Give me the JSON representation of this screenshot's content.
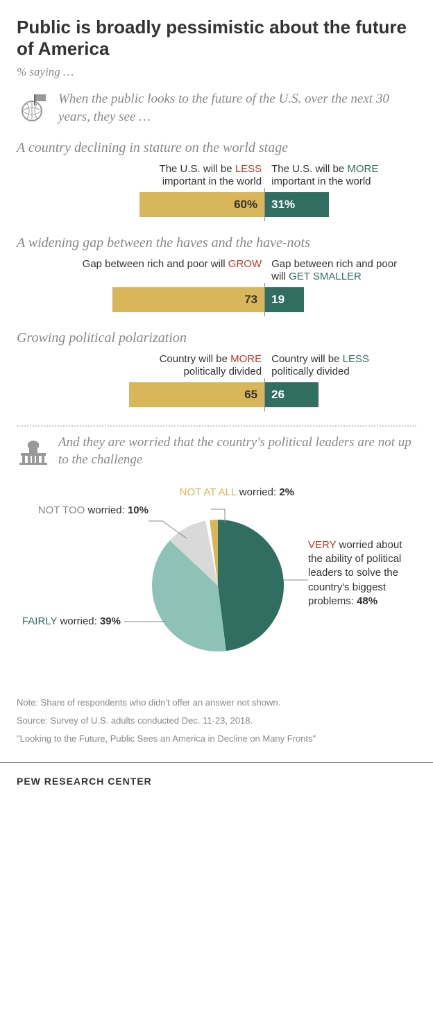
{
  "title": "Public is broadly pessimistic about the future of America",
  "subtitle": "% saying …",
  "colors": {
    "gold": "#d9b65a",
    "teal": "#2f6e61",
    "teal_light": "#8fc2b7",
    "red_kw": "#c0392b",
    "green_kw": "#2f6e61",
    "gray_text": "#888888"
  },
  "section1": {
    "intro": "When the public looks to the future of the U.S. over the next 30 years, they see …",
    "blocks": [
      {
        "title": "A country declining in stature on the world stage",
        "left_label_pre": "The U.S. will be ",
        "left_kw": "LESS",
        "left_label_post": " important in the world",
        "right_label_pre": "The U.S. will be ",
        "right_kw": "MORE",
        "right_label_post": " important in the world",
        "left_val": 60,
        "left_val_txt": "60%",
        "right_val": 31,
        "right_val_txt": "31%",
        "scale": 3.0
      },
      {
        "title": "A widening gap between the haves and the have-nots",
        "left_label_pre": "Gap between rich and poor will ",
        "left_kw": "GROW",
        "left_label_post": "",
        "right_label_pre": "Gap between rich and poor will ",
        "right_kw": "GET SMALLER",
        "right_label_post": "",
        "left_val": 73,
        "left_val_txt": "73",
        "right_val": 19,
        "right_val_txt": "19",
        "scale": 3.0
      },
      {
        "title": "Growing political polarization",
        "left_label_pre": "Country will be ",
        "left_kw": "MORE",
        "left_label_post": " politically divided",
        "right_label_pre": "Country will be ",
        "right_kw": "LESS",
        "right_label_post": " politically divided",
        "left_val": 65,
        "left_val_txt": "65",
        "right_val": 26,
        "right_val_txt": "26",
        "scale": 3.0
      }
    ]
  },
  "section2": {
    "intro": "And they are worried that the country's political leaders are not up to the challenge",
    "pie": {
      "slices": [
        {
          "label_kw": "VERY",
          "label_rest": " worried about the ability of political leaders to solve the country's biggest problems: ",
          "val": 48,
          "val_txt": "48%",
          "color": "#2f6e61"
        },
        {
          "label_kw": "FAIRLY",
          "label_rest": " worried: ",
          "val": 39,
          "val_txt": "39%",
          "color": "#8fc2b7"
        },
        {
          "label_kw": "NOT TOO",
          "label_rest": " worried: ",
          "val": 10,
          "val_txt": "10%",
          "color": "#d9d9d9"
        },
        {
          "label_kw": "NOT AT ALL",
          "label_rest": " worried: ",
          "val": 2,
          "val_txt": "2%",
          "color": "#d9b65a"
        }
      ]
    }
  },
  "note": "Note: Share of respondents who didn't offer an answer not shown.",
  "source": "Source: Survey of U.S. adults conducted Dec. 11-23, 2018.",
  "report": "\"Looking to the Future, Public Sees an America in Decline on Many Fronts\"",
  "footer": "PEW RESEARCH CENTER"
}
